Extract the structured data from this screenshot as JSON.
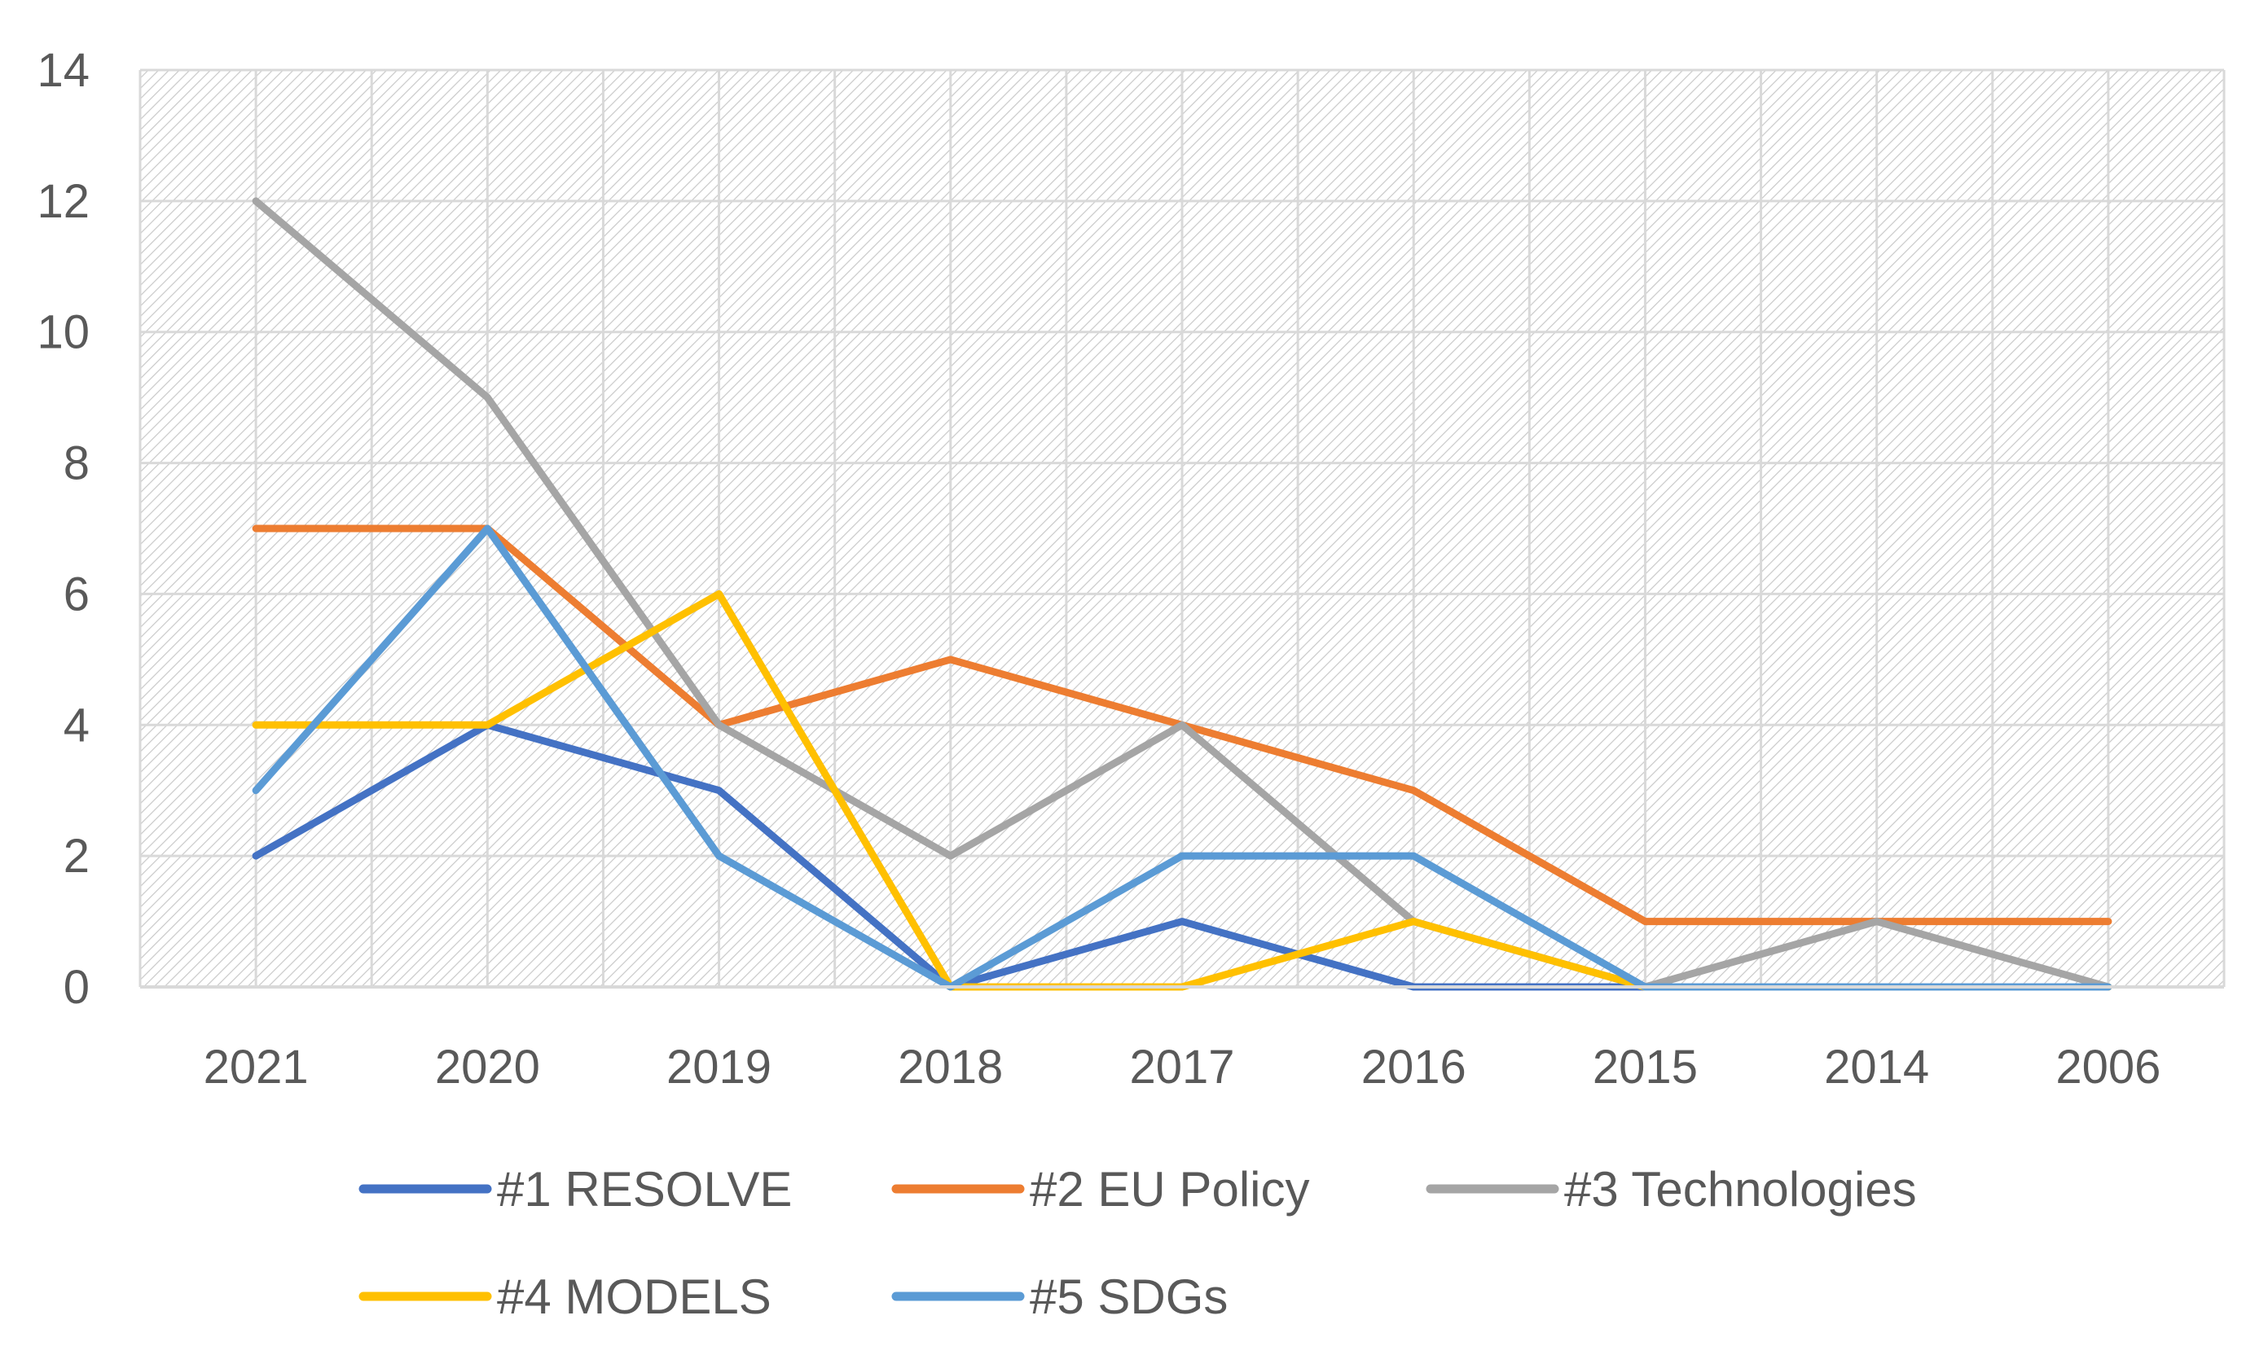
{
  "chart_data": {
    "type": "line",
    "title": "",
    "xlabel": "",
    "ylabel": "",
    "ylim": [
      0,
      14
    ],
    "yticks": [
      0,
      2,
      4,
      6,
      8,
      10,
      12,
      14
    ],
    "grid": true,
    "legend_position": "bottom",
    "categories": [
      "2021",
      "2020",
      "2019",
      "2018",
      "2017",
      "2016",
      "2015",
      "2014",
      "2006"
    ],
    "series": [
      {
        "name": "#1 RESOLVE",
        "color": "#4472C4",
        "values": [
          2,
          4,
          3,
          0,
          1,
          0,
          0,
          0,
          0
        ]
      },
      {
        "name": "#2 EU Policy",
        "color": "#ED7D31",
        "values": [
          7,
          7,
          4,
          5,
          4,
          3,
          1,
          1,
          1
        ]
      },
      {
        "name": "#3 Technologies",
        "color": "#A5A5A5",
        "values": [
          12,
          9,
          4,
          2,
          4,
          1,
          0,
          1,
          0
        ]
      },
      {
        "name": "#4 MODELS",
        "color": "#FFC000",
        "values": [
          4,
          4,
          6,
          0,
          0,
          1,
          0,
          0,
          0
        ]
      },
      {
        "name": "#5 SDGs",
        "color": "#5B9BD5",
        "values": [
          3,
          7,
          2,
          0,
          2,
          2,
          0,
          0,
          0
        ]
      }
    ]
  }
}
